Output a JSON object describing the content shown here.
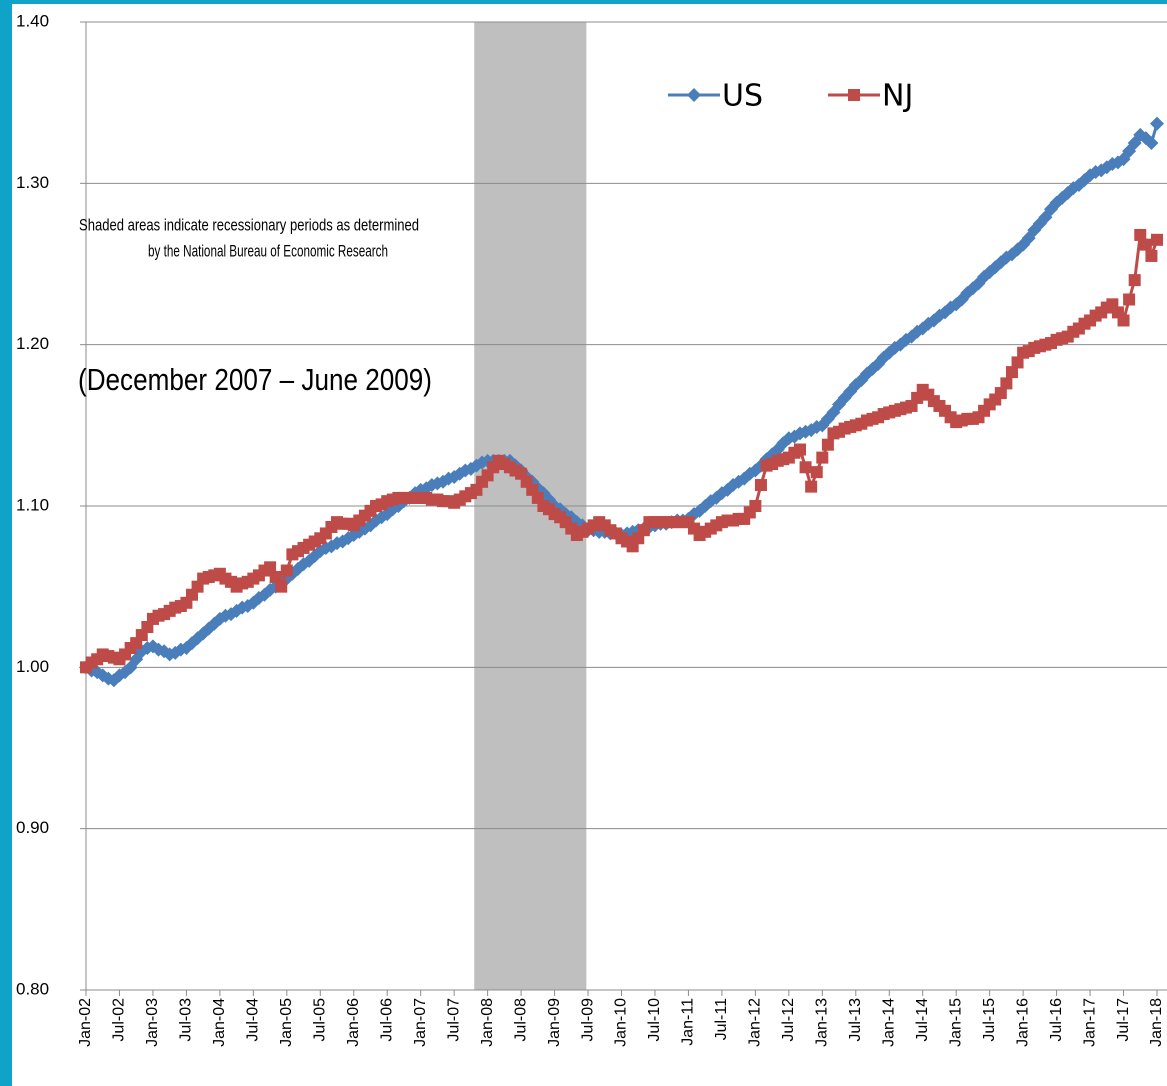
{
  "chart_data": {
    "type": "line",
    "annotations": [
      "Shaded areas indicate recessionary periods as determined",
      "by the National Bureau of Economic Research",
      "(December 2007 – June 2009)"
    ],
    "shade": [
      69.6,
      89.7
    ],
    "shade_color": "#bfbfbf",
    "legend": "upper right",
    "grid": true,
    "ylim": [
      0.8,
      1.4
    ],
    "yticks": [
      {
        "value": 0.8,
        "label": "0.80"
      },
      {
        "value": 0.9,
        "label": "0.90"
      },
      {
        "value": 1.0,
        "label": "1.00"
      },
      {
        "value": 1.1,
        "label": "1.10"
      },
      {
        "value": 1.2,
        "label": "1.20"
      },
      {
        "value": 1.3,
        "label": "1.30"
      },
      {
        "value": 1.4,
        "label": "1.40"
      }
    ],
    "categories": [
      "Jan-02",
      null,
      null,
      null,
      null,
      null,
      "Jul-02",
      null,
      null,
      null,
      null,
      null,
      "Jan-03",
      null,
      null,
      null,
      null,
      null,
      "Jul-03",
      null,
      null,
      null,
      null,
      null,
      "Jan-04",
      null,
      null,
      null,
      null,
      null,
      "Jul-04",
      null,
      null,
      null,
      null,
      null,
      "Jan-05",
      null,
      null,
      null,
      null,
      null,
      "Jul-05",
      null,
      null,
      null,
      null,
      null,
      "Jan-06",
      null,
      null,
      null,
      null,
      null,
      "Jul-06",
      null,
      null,
      null,
      null,
      null,
      "Jan-07",
      null,
      null,
      null,
      null,
      null,
      "Jul-07",
      null,
      null,
      null,
      null,
      null,
      "Jan-08",
      null,
      null,
      null,
      null,
      null,
      "Jul-08",
      null,
      null,
      null,
      null,
      null,
      "Jan-09",
      null,
      null,
      null,
      null,
      null,
      "Jul-09",
      null,
      null,
      null,
      null,
      null,
      "Jan-10",
      null,
      null,
      null,
      null,
      null,
      "Jul-10",
      null,
      null,
      null,
      null,
      null,
      "Jan-11",
      null,
      null,
      null,
      null,
      null,
      "Jul-11",
      null,
      null,
      null,
      null,
      null,
      "Jan-12",
      null,
      null,
      null,
      null,
      null,
      "Jul-12",
      null,
      null,
      null,
      null,
      null,
      "Jan-13",
      null,
      null,
      null,
      null,
      null,
      "Jul-13",
      null,
      null,
      null,
      null,
      null,
      "Jan-14",
      null,
      null,
      null,
      null,
      null,
      "Jul-14",
      null,
      null,
      null,
      null,
      null,
      "Jan-15",
      null,
      null,
      null,
      null,
      null,
      "Jul-15",
      null,
      null,
      null,
      null,
      null,
      "Jan-16",
      null,
      null,
      null,
      null,
      null,
      "Jul-16",
      null,
      null,
      null,
      null,
      null,
      "Jan-17",
      null,
      null,
      null,
      null,
      null,
      "Jul-17",
      null,
      null,
      null,
      null,
      null,
      "Jan-18"
    ],
    "series": [
      {
        "name": "US",
        "color": "#4a7ebb",
        "marker": "diamond",
        "values": [
          1.0,
          0.998,
          0.997,
          0.995,
          0.993,
          0.992,
          0.995,
          0.997,
          1.0,
          1.005,
          1.01,
          1.012,
          1.013,
          1.011,
          1.01,
          1.008,
          1.009,
          1.011,
          1.012,
          1.015,
          1.018,
          1.021,
          1.024,
          1.027,
          1.03,
          1.032,
          1.033,
          1.035,
          1.037,
          1.038,
          1.04,
          1.043,
          1.045,
          1.048,
          1.05,
          1.053,
          1.055,
          1.058,
          1.061,
          1.064,
          1.066,
          1.069,
          1.072,
          1.074,
          1.075,
          1.077,
          1.078,
          1.08,
          1.082,
          1.084,
          1.086,
          1.088,
          1.091,
          1.093,
          1.095,
          1.098,
          1.1,
          1.103,
          1.105,
          1.108,
          1.11,
          1.111,
          1.113,
          1.114,
          1.115,
          1.117,
          1.118,
          1.12,
          1.122,
          1.123,
          1.125,
          1.127,
          1.128,
          1.128,
          1.128,
          1.128,
          1.128,
          1.125,
          1.122,
          1.118,
          1.115,
          1.111,
          1.108,
          1.104,
          1.1,
          1.098,
          1.095,
          1.093,
          1.09,
          1.088,
          1.085,
          1.085,
          1.084,
          1.084,
          1.083,
          1.083,
          1.082,
          1.083,
          1.084,
          1.085,
          1.086,
          1.087,
          1.088,
          1.089,
          1.089,
          1.09,
          1.091,
          1.091,
          1.092,
          1.095,
          1.097,
          1.1,
          1.103,
          1.105,
          1.108,
          1.11,
          1.113,
          1.115,
          1.117,
          1.12,
          1.122,
          1.125,
          1.129,
          1.132,
          1.135,
          1.139,
          1.142,
          1.143,
          1.145,
          1.146,
          1.147,
          1.149,
          1.15,
          1.154,
          1.158,
          1.163,
          1.167,
          1.171,
          1.175,
          1.178,
          1.182,
          1.185,
          1.188,
          1.192,
          1.195,
          1.198,
          1.2,
          1.203,
          1.205,
          1.208,
          1.21,
          1.213,
          1.215,
          1.218,
          1.22,
          1.223,
          1.225,
          1.228,
          1.232,
          1.235,
          1.238,
          1.242,
          1.245,
          1.248,
          1.251,
          1.254,
          1.256,
          1.259,
          1.262,
          1.266,
          1.271,
          1.275,
          1.279,
          1.284,
          1.288,
          1.291,
          1.294,
          1.297,
          1.299,
          1.302,
          1.305,
          1.307,
          1.308,
          1.31,
          1.312,
          1.313,
          1.315,
          1.32,
          1.325,
          1.33,
          1.328,
          1.325,
          1.337
        ]
      },
      {
        "name": "NJ",
        "color": "#be4b48",
        "marker": "square",
        "values": [
          1.0,
          1.003,
          1.005,
          1.008,
          1.007,
          1.006,
          1.005,
          1.008,
          1.012,
          1.015,
          1.02,
          1.025,
          1.03,
          1.032,
          1.033,
          1.035,
          1.037,
          1.038,
          1.04,
          1.045,
          1.05,
          1.055,
          1.056,
          1.057,
          1.058,
          1.055,
          1.053,
          1.05,
          1.052,
          1.053,
          1.055,
          1.057,
          1.06,
          1.062,
          1.056,
          1.05,
          1.06,
          1.07,
          1.072,
          1.074,
          1.076,
          1.078,
          1.08,
          1.083,
          1.087,
          1.09,
          1.089,
          1.089,
          1.088,
          1.091,
          1.094,
          1.097,
          1.1,
          1.101,
          1.103,
          1.104,
          1.105,
          1.105,
          1.105,
          1.105,
          1.105,
          1.105,
          1.104,
          1.104,
          1.103,
          1.103,
          1.102,
          1.104,
          1.106,
          1.108,
          1.11,
          1.115,
          1.119,
          1.124,
          1.128,
          1.126,
          1.124,
          1.122,
          1.12,
          1.115,
          1.11,
          1.105,
          1.1,
          1.098,
          1.095,
          1.093,
          1.09,
          1.086,
          1.082,
          1.084,
          1.086,
          1.088,
          1.09,
          1.088,
          1.085,
          1.083,
          1.08,
          1.078,
          1.075,
          1.08,
          1.085,
          1.09,
          1.09,
          1.09,
          1.09,
          1.09,
          1.09,
          1.09,
          1.09,
          1.086,
          1.082,
          1.084,
          1.086,
          1.088,
          1.09,
          1.091,
          1.091,
          1.092,
          1.092,
          1.096,
          1.1,
          1.113,
          1.125,
          1.126,
          1.128,
          1.129,
          1.13,
          1.133,
          1.135,
          1.124,
          1.112,
          1.121,
          1.13,
          1.138,
          1.145,
          1.146,
          1.148,
          1.149,
          1.15,
          1.151,
          1.153,
          1.154,
          1.155,
          1.157,
          1.158,
          1.159,
          1.16,
          1.161,
          1.162,
          1.167,
          1.172,
          1.169,
          1.165,
          1.162,
          1.159,
          1.155,
          1.152,
          1.153,
          1.154,
          1.154,
          1.155,
          1.159,
          1.163,
          1.166,
          1.17,
          1.176,
          1.183,
          1.189,
          1.195,
          1.196,
          1.198,
          1.199,
          1.2,
          1.201,
          1.203,
          1.204,
          1.205,
          1.208,
          1.21,
          1.213,
          1.215,
          1.218,
          1.22,
          1.223,
          1.225,
          1.22,
          1.215,
          1.228,
          1.24,
          1.268,
          1.262,
          1.255,
          1.265
        ]
      }
    ]
  }
}
